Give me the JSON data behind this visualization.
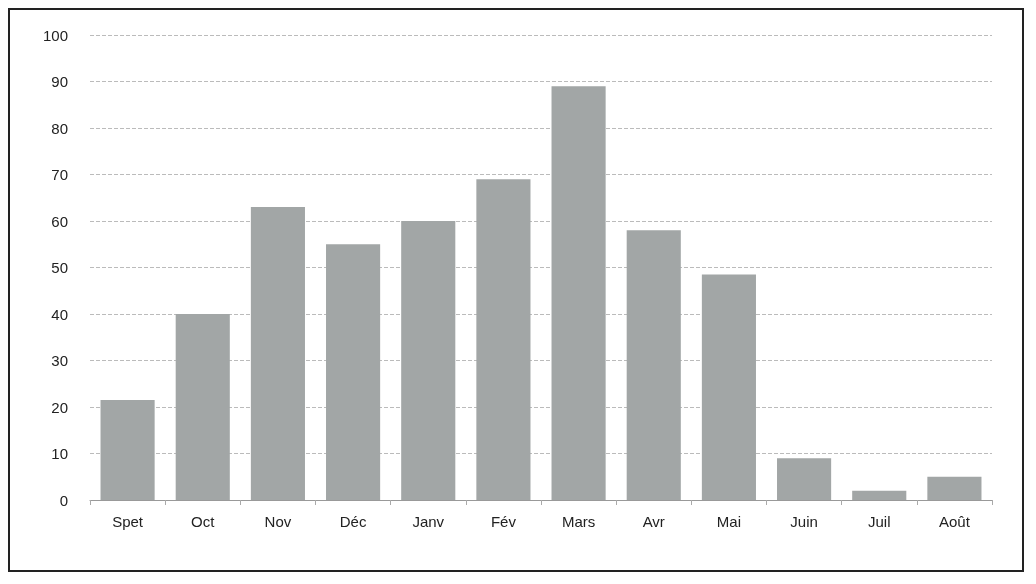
{
  "chart_data": {
    "type": "bar",
    "categories": [
      "Spet",
      "Oct",
      "Nov",
      "Déc",
      "Janv",
      "Fév",
      "Mars",
      "Avr",
      "Mai",
      "Juin",
      "Juil",
      "Août"
    ],
    "values": [
      21.5,
      40,
      63,
      55,
      60,
      69,
      89,
      58,
      48.5,
      9,
      2,
      5
    ],
    "color": "#a2a6a6",
    "ylim": [
      0,
      100
    ],
    "yticks": [
      0,
      10,
      20,
      30,
      40,
      50,
      60,
      70,
      80,
      90,
      100
    ],
    "grid": "y"
  }
}
